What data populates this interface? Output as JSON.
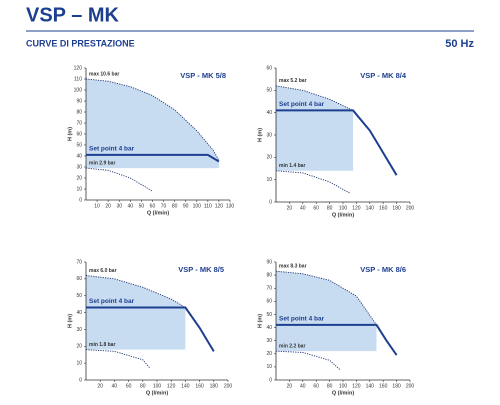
{
  "header": {
    "title": "VSP – MK",
    "subtitle": "CURVE DI PRESTAZIONE",
    "frequency": "50 Hz"
  },
  "chart_data": [
    {
      "type": "line",
      "title": "VSP - MK 5/8",
      "xlabel": "Q (l/min)",
      "ylabel": "H (m)",
      "xlim": [
        0,
        130
      ],
      "xticks": [
        10,
        20,
        30,
        40,
        50,
        60,
        70,
        80,
        90,
        100,
        110,
        120,
        130
      ],
      "ylim": [
        0,
        120
      ],
      "yticks": [
        0,
        10,
        20,
        30,
        40,
        50,
        60,
        70,
        80,
        90,
        100,
        110,
        120
      ],
      "series": [
        {
          "name": "max 10.6 bar",
          "color": "#1b2f6e",
          "style": "dotted",
          "x": [
            0,
            20,
            40,
            60,
            80,
            100,
            115,
            120
          ],
          "values": [
            110,
            108,
            103,
            95,
            82,
            63,
            45,
            36
          ]
        },
        {
          "name": "Set point 4 bar",
          "color": "#1d3f8f",
          "style": "solid",
          "x": [
            0,
            110,
            120
          ],
          "values": [
            41,
            41,
            35
          ]
        },
        {
          "name": "min 2.9 bar",
          "color": "#1b2f6e",
          "style": "dotted",
          "x": [
            0,
            20,
            40,
            60
          ],
          "values": [
            29,
            27,
            20,
            8
          ]
        }
      ]
    },
    {
      "type": "line",
      "title": "VSP - MK 8/4",
      "xlabel": "Q (l/min)",
      "ylabel": "H (m)",
      "xlim": [
        0,
        200
      ],
      "xticks": [
        20,
        40,
        60,
        80,
        100,
        120,
        140,
        160,
        180,
        200
      ],
      "ylim": [
        0,
        60
      ],
      "yticks": [
        0,
        10,
        20,
        30,
        40,
        50,
        60
      ],
      "series": [
        {
          "name": "max 5.2 bar",
          "color": "#1b2f6e",
          "style": "dotted",
          "x": [
            0,
            40,
            80,
            115
          ],
          "values": [
            52,
            50,
            46,
            41
          ]
        },
        {
          "name": "Set point 4 bar",
          "color": "#1d3f8f",
          "style": "solid",
          "x": [
            0,
            115,
            140,
            160,
            180
          ],
          "values": [
            41,
            41,
            32,
            22,
            12
          ]
        },
        {
          "name": "min 1.4 bar",
          "color": "#1b2f6e",
          "style": "dotted",
          "x": [
            0,
            40,
            80,
            110
          ],
          "values": [
            14,
            13,
            9,
            4
          ]
        }
      ]
    },
    {
      "type": "line",
      "title": "VSP - MK 8/5",
      "xlabel": "Q (l/min)",
      "ylabel": "H (m)",
      "xlim": [
        0,
        200
      ],
      "xticks": [
        20,
        40,
        60,
        80,
        100,
        120,
        140,
        160,
        180,
        200
      ],
      "ylim": [
        0,
        70
      ],
      "yticks": [
        0,
        10,
        20,
        30,
        40,
        50,
        60,
        70
      ],
      "series": [
        {
          "name": "max 6.0 bar",
          "color": "#1b2f6e",
          "style": "dotted",
          "x": [
            0,
            40,
            80,
            120,
            140
          ],
          "values": [
            62,
            60,
            55,
            48,
            43
          ]
        },
        {
          "name": "Set point 4 bar",
          "color": "#1d3f8f",
          "style": "solid",
          "x": [
            0,
            140,
            160,
            180
          ],
          "values": [
            43,
            43,
            31,
            17
          ]
        },
        {
          "name": "min 1.8 bar",
          "color": "#1b2f6e",
          "style": "dotted",
          "x": [
            0,
            40,
            80,
            90
          ],
          "values": [
            18,
            17,
            12,
            7
          ]
        }
      ]
    },
    {
      "type": "line",
      "title": "VSP - MK 8/6",
      "xlabel": "Q (l/min)",
      "ylabel": "H (m)",
      "xlim": [
        0,
        200
      ],
      "xticks": [
        20,
        40,
        60,
        80,
        100,
        120,
        140,
        160,
        180,
        200
      ],
      "ylim": [
        0,
        90
      ],
      "yticks": [
        0,
        10,
        20,
        30,
        40,
        50,
        60,
        70,
        80,
        90
      ],
      "series": [
        {
          "name": "max 8.3 bar",
          "color": "#1b2f6e",
          "style": "dotted",
          "x": [
            0,
            40,
            80,
            120,
            150
          ],
          "values": [
            83,
            81,
            76,
            64,
            42
          ]
        },
        {
          "name": "Set point 4 bar",
          "color": "#1d3f8f",
          "style": "solid",
          "x": [
            0,
            150,
            165,
            180
          ],
          "values": [
            42,
            42,
            30,
            19
          ]
        },
        {
          "name": "min 2.2 bar",
          "color": "#1b2f6e",
          "style": "dotted",
          "x": [
            0,
            40,
            80,
            95
          ],
          "values": [
            22,
            21,
            15,
            8
          ]
        }
      ]
    }
  ]
}
